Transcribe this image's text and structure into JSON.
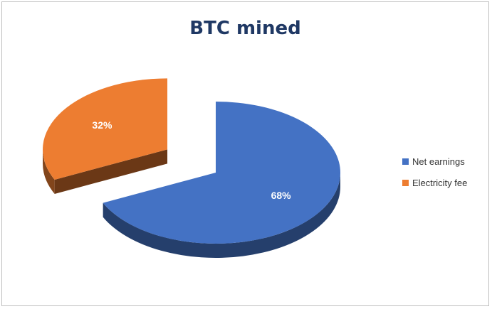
{
  "chart_data": {
    "type": "pie",
    "title": "BTC mined",
    "categories": [
      "Net earnings",
      "Electricity fee"
    ],
    "values": [
      68,
      32
    ],
    "labels": [
      "68%",
      "32%"
    ],
    "colors": [
      "#4472c4",
      "#ed7d31"
    ],
    "legend_position": "right",
    "style": "3d-exploded"
  }
}
